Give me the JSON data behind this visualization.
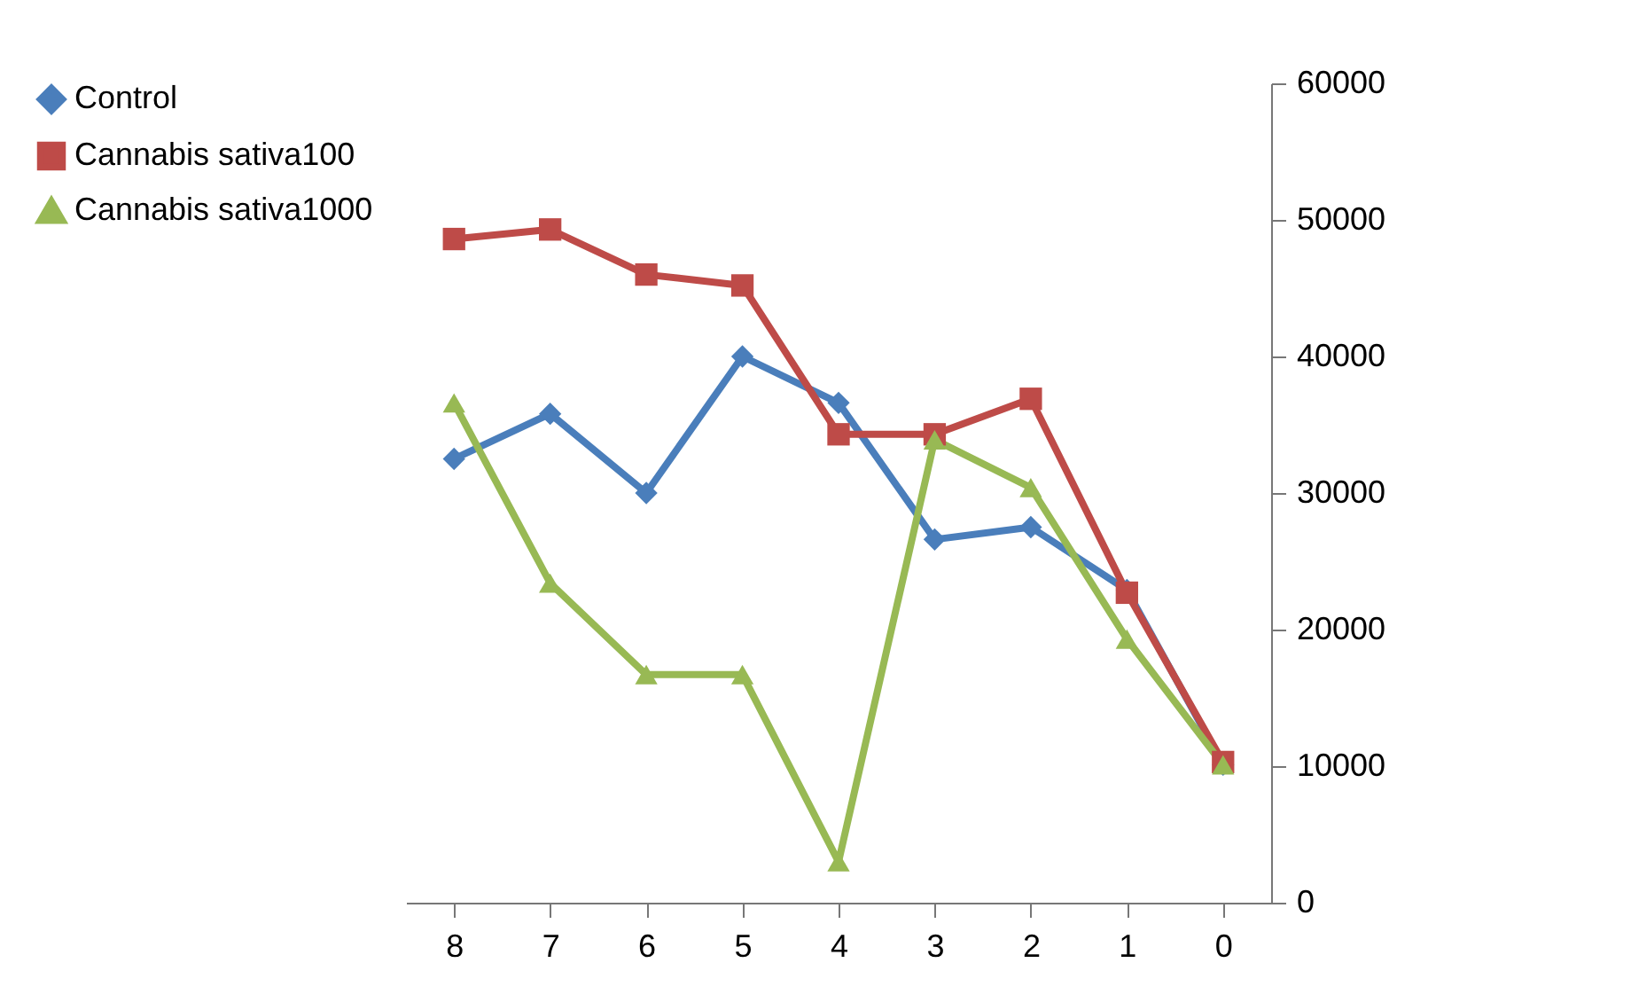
{
  "chart_data": {
    "type": "line",
    "categories": [
      "8",
      "7",
      "6",
      "5",
      "4",
      "3",
      "2",
      "1",
      "0"
    ],
    "series": [
      {
        "name": "Control",
        "color": "#4a7ebb",
        "marker": "diamond",
        "values": [
          32500,
          35800,
          30000,
          40000,
          36600,
          26600,
          27500,
          22900,
          10100
        ]
      },
      {
        "name": "Cannabis sativa100",
        "color": "#be4b48",
        "marker": "square",
        "values": [
          48600,
          49300,
          46000,
          45200,
          34300,
          34300,
          36900,
          22700,
          10300
        ]
      },
      {
        "name": "Cannabis sativa1000",
        "color": "#98b954",
        "marker": "triangle",
        "values": [
          36600,
          23400,
          16700,
          16700,
          3000,
          33900,
          30400,
          19300,
          10100
        ]
      }
    ],
    "ylim": [
      0,
      60000
    ],
    "yticks": [
      0,
      10000,
      20000,
      30000,
      40000,
      50000,
      60000
    ],
    "grid": false,
    "legend": "left",
    "line_style": "solid"
  }
}
